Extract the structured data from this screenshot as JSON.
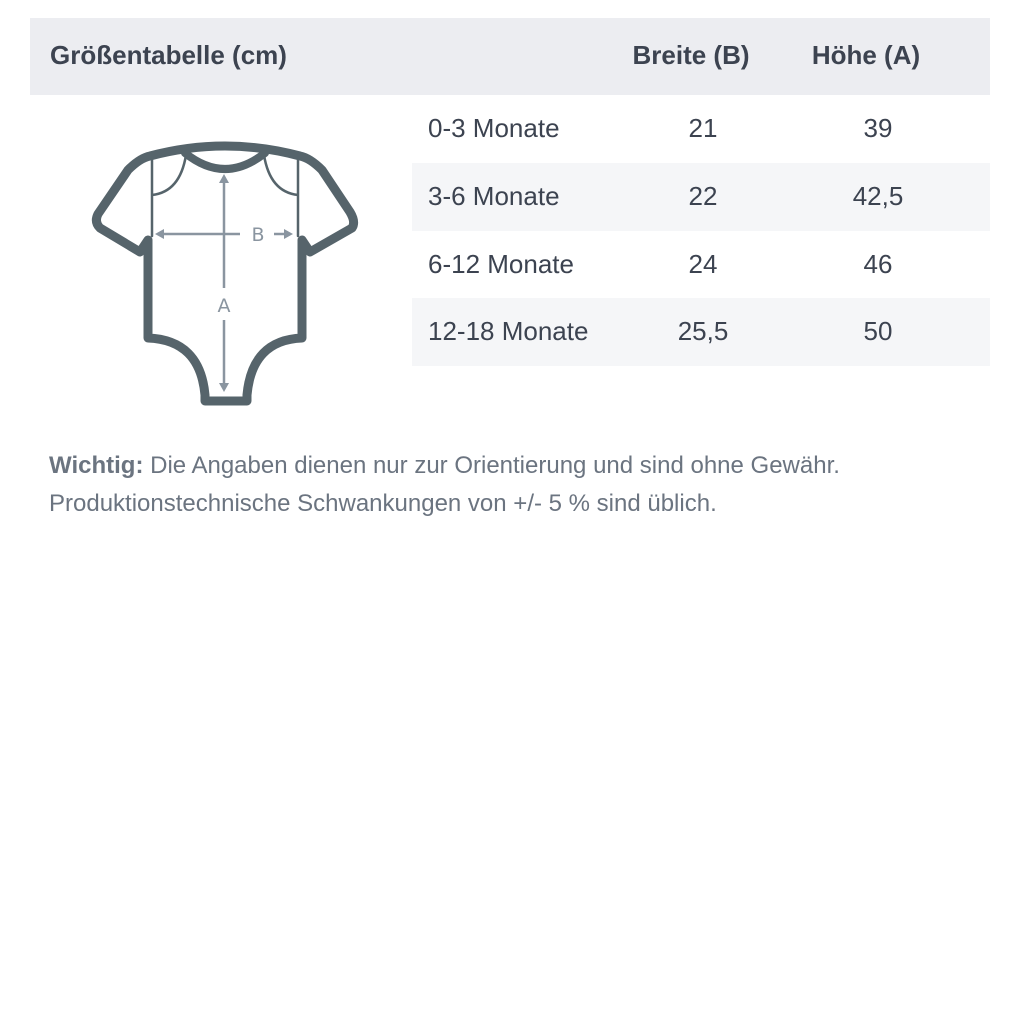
{
  "header": {
    "title": "Größentabelle (cm)",
    "col_width": "Breite (B)",
    "col_height": "Höhe (A)"
  },
  "rows": [
    {
      "size": "0-3 Monate",
      "width": "21",
      "height": "39"
    },
    {
      "size": "3-6 Monate",
      "width": "22",
      "height": "42,5"
    },
    {
      "size": "6-12 Monate",
      "width": "24",
      "height": "46"
    },
    {
      "size": "12-18 Monate",
      "width": "25,5",
      "height": "50"
    }
  ],
  "diagram": {
    "icon": "baby-bodysuit-icon",
    "label_width": "B",
    "label_height": "A",
    "outline_color": "#56646b",
    "arrow_color": "#8a95a0"
  },
  "note": {
    "label": "Wichtig:",
    "line1": " Die Angaben dienen nur zur Orientierung und sind ohne Gewähr.",
    "line2": "Produktionstechnische Schwankungen von +/- 5 % sind üblich."
  }
}
